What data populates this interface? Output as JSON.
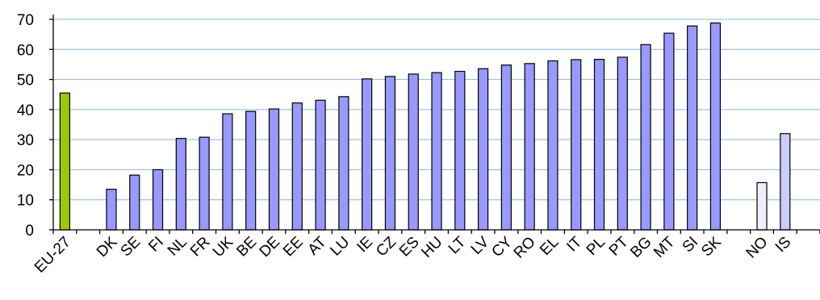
{
  "chart_data": {
    "type": "bar",
    "title": "",
    "xlabel": "",
    "ylabel": "",
    "ylim": [
      0,
      70
    ],
    "yticks": [
      0,
      10,
      20,
      30,
      40,
      50,
      60,
      70
    ],
    "grid": true,
    "legend": "none",
    "categories": [
      "EU-27",
      "",
      "DK",
      "SE",
      "FI",
      "NL",
      "FR",
      "UK",
      "BE",
      "DE",
      "EE",
      "AT",
      "LU",
      "IE",
      "CZ",
      "ES",
      "HU",
      "LT",
      "LV",
      "CY",
      "RO",
      "EL",
      "IT",
      "PL",
      "PT",
      "BG",
      "MT",
      "SI",
      "SK",
      "",
      "NO",
      "IS",
      ""
    ],
    "values": [
      45.5,
      null,
      13.5,
      18.2,
      20,
      30.4,
      30.8,
      38.6,
      39.4,
      40.2,
      42.2,
      43.1,
      44.3,
      50.2,
      51,
      51.8,
      52.3,
      52.7,
      53.6,
      54.8,
      55.3,
      56.2,
      56.6,
      56.7,
      57.4,
      61.6,
      65.4,
      67.8,
      68.8,
      null,
      15.7,
      32,
      null
    ],
    "bar_colors": [
      "#99cc00",
      "#9999ff",
      "#9999ff",
      "#9999ff",
      "#9999ff",
      "#9999ff",
      "#9999ff",
      "#9999ff",
      "#9999ff",
      "#9999ff",
      "#9999ff",
      "#9999ff",
      "#9999ff",
      "#9999ff",
      "#9999ff",
      "#9999ff",
      "#9999ff",
      "#9999ff",
      "#9999ff",
      "#9999ff",
      "#9999ff",
      "#9999ff",
      "#9999ff",
      "#9999ff",
      "#9999ff",
      "#9999ff",
      "#9999ff",
      "#9999ff",
      "#9999ff",
      "#9999ff",
      "#eeeeff",
      "#ccccff",
      "#ccccff"
    ]
  }
}
